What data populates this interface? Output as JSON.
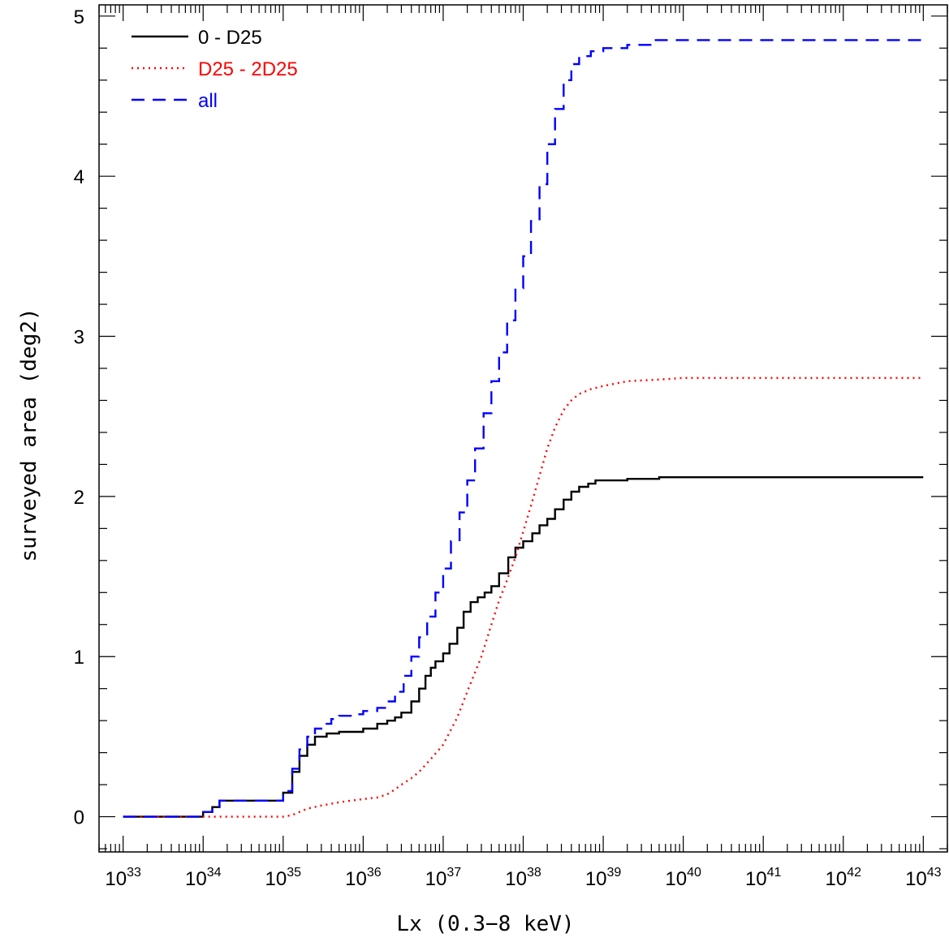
{
  "chart_data": {
    "type": "line",
    "title": "",
    "xlabel": "Lx (0.3−8 keV)",
    "ylabel": "surveyed area (deg2)",
    "xscale": "log",
    "xlim": [
      5e+32,
      2e+43
    ],
    "ylim": [
      -0.22,
      5.07
    ],
    "x_tick_base": "10",
    "x_tick_exponents": [
      "33",
      "34",
      "35",
      "36",
      "37",
      "38",
      "39",
      "40",
      "41",
      "42",
      "43"
    ],
    "y_ticks": [
      "0",
      "1",
      "2",
      "3",
      "4",
      "5"
    ],
    "legend_position": "top-left",
    "grid": false,
    "series": [
      {
        "name": "0 - D25",
        "color": "#000000",
        "style": "solid",
        "step": true,
        "points": [
          [
            1e+33,
            0.0
          ],
          [
            7e+33,
            0.0
          ],
          [
            1e+34,
            0.03
          ],
          [
            1.3e+34,
            0.06
          ],
          [
            1.6e+34,
            0.1
          ],
          [
            8e+34,
            0.1
          ],
          [
            1e+35,
            0.15
          ],
          [
            1.3e+35,
            0.28
          ],
          [
            1.6e+35,
            0.38
          ],
          [
            2e+35,
            0.45
          ],
          [
            2.5e+35,
            0.5
          ],
          [
            3.5e+35,
            0.52
          ],
          [
            5e+35,
            0.53
          ],
          [
            1e+36,
            0.55
          ],
          [
            1.5e+36,
            0.58
          ],
          [
            2e+36,
            0.6
          ],
          [
            2.5e+36,
            0.62
          ],
          [
            3e+36,
            0.65
          ],
          [
            4e+36,
            0.72
          ],
          [
            5e+36,
            0.8
          ],
          [
            6e+36,
            0.88
          ],
          [
            7e+36,
            0.93
          ],
          [
            8e+36,
            0.97
          ],
          [
            1e+37,
            1.02
          ],
          [
            1.2e+37,
            1.08
          ],
          [
            1.5e+37,
            1.18
          ],
          [
            1.8e+37,
            1.28
          ],
          [
            2.2e+37,
            1.34
          ],
          [
            2.7e+37,
            1.37
          ],
          [
            3.3e+37,
            1.4
          ],
          [
            4e+37,
            1.44
          ],
          [
            5e+37,
            1.52
          ],
          [
            6.5e+37,
            1.62
          ],
          [
            8e+37,
            1.68
          ],
          [
            1e+38,
            1.72
          ],
          [
            1.3e+38,
            1.77
          ],
          [
            1.6e+38,
            1.82
          ],
          [
            2e+38,
            1.86
          ],
          [
            2.5e+38,
            1.92
          ],
          [
            3.2e+38,
            1.98
          ],
          [
            4e+38,
            2.03
          ],
          [
            5e+38,
            2.06
          ],
          [
            6.5e+38,
            2.08
          ],
          [
            8e+38,
            2.1
          ],
          [
            1e+39,
            2.1
          ],
          [
            2e+39,
            2.11
          ],
          [
            5e+39,
            2.12
          ],
          [
            1e+40,
            2.12
          ],
          [
            1e+41,
            2.12
          ],
          [
            1e+42,
            2.12
          ],
          [
            1e+43,
            2.12
          ]
        ]
      },
      {
        "name": "D25 - 2D25",
        "color": "#ff0000",
        "style": "dotted",
        "step": false,
        "points": [
          [
            1e+33,
            0.0
          ],
          [
            1e+35,
            0.0
          ],
          [
            1.3e+35,
            0.01
          ],
          [
            1.6e+35,
            0.03
          ],
          [
            2e+35,
            0.05
          ],
          [
            3e+35,
            0.07
          ],
          [
            5e+35,
            0.09
          ],
          [
            7e+35,
            0.1
          ],
          [
            1e+36,
            0.11
          ],
          [
            1.5e+36,
            0.12
          ],
          [
            2e+36,
            0.14
          ],
          [
            2.5e+36,
            0.17
          ],
          [
            3e+36,
            0.2
          ],
          [
            4e+36,
            0.24
          ],
          [
            5e+36,
            0.28
          ],
          [
            7e+36,
            0.36
          ],
          [
            1e+37,
            0.45
          ],
          [
            1.5e+37,
            0.62
          ],
          [
            2e+37,
            0.78
          ],
          [
            3e+37,
            1.0
          ],
          [
            4e+37,
            1.2
          ],
          [
            5e+37,
            1.35
          ],
          [
            6e+37,
            1.45
          ],
          [
            8e+37,
            1.62
          ],
          [
            1e+38,
            1.78
          ],
          [
            1.3e+38,
            1.97
          ],
          [
            1.6e+38,
            2.13
          ],
          [
            2e+38,
            2.3
          ],
          [
            2.5e+38,
            2.43
          ],
          [
            3.2e+38,
            2.54
          ],
          [
            4e+38,
            2.6
          ],
          [
            5e+38,
            2.64
          ],
          [
            7e+38,
            2.67
          ],
          [
            1e+39,
            2.69
          ],
          [
            2e+39,
            2.72
          ],
          [
            5e+39,
            2.73
          ],
          [
            1e+40,
            2.74
          ],
          [
            1e+41,
            2.74
          ],
          [
            1e+42,
            2.74
          ],
          [
            1e+43,
            2.74
          ]
        ]
      },
      {
        "name": "all",
        "color": "#0000ff",
        "style": "dashed",
        "step": true,
        "points": [
          [
            1e+33,
            0.0
          ],
          [
            7e+33,
            0.0
          ],
          [
            1e+34,
            0.03
          ],
          [
            1.3e+34,
            0.06
          ],
          [
            1.6e+34,
            0.1
          ],
          [
            8e+34,
            0.1
          ],
          [
            1e+35,
            0.16
          ],
          [
            1.3e+35,
            0.3
          ],
          [
            1.6e+35,
            0.42
          ],
          [
            2e+35,
            0.5
          ],
          [
            2.5e+35,
            0.55
          ],
          [
            3e+35,
            0.58
          ],
          [
            4e+35,
            0.61
          ],
          [
            5e+35,
            0.63
          ],
          [
            7e+35,
            0.64
          ],
          [
            1e+36,
            0.66
          ],
          [
            1.5e+36,
            0.68
          ],
          [
            2e+36,
            0.72
          ],
          [
            2.5e+36,
            0.78
          ],
          [
            3.2e+36,
            0.88
          ],
          [
            4e+36,
            1.0
          ],
          [
            5e+36,
            1.12
          ],
          [
            6.3e+36,
            1.25
          ],
          [
            8e+36,
            1.4
          ],
          [
            1e+37,
            1.55
          ],
          [
            1.25e+37,
            1.72
          ],
          [
            1.6e+37,
            1.9
          ],
          [
            2e+37,
            2.1
          ],
          [
            2.5e+37,
            2.3
          ],
          [
            3.2e+37,
            2.52
          ],
          [
            4e+37,
            2.72
          ],
          [
            5e+37,
            2.9
          ],
          [
            6.3e+37,
            3.1
          ],
          [
            8e+37,
            3.3
          ],
          [
            1e+38,
            3.5
          ],
          [
            1.25e+38,
            3.72
          ],
          [
            1.6e+38,
            3.95
          ],
          [
            2e+38,
            4.2
          ],
          [
            2.5e+38,
            4.42
          ],
          [
            3.2e+38,
            4.6
          ],
          [
            4e+38,
            4.7
          ],
          [
            5e+38,
            4.75
          ],
          [
            7e+38,
            4.78
          ],
          [
            1e+39,
            4.8
          ],
          [
            2e+39,
            4.82
          ],
          [
            4e+39,
            4.85
          ],
          [
            1e+40,
            4.85
          ],
          [
            1e+41,
            4.85
          ],
          [
            1e+42,
            4.85
          ],
          [
            1e+43,
            4.85
          ]
        ]
      }
    ]
  }
}
